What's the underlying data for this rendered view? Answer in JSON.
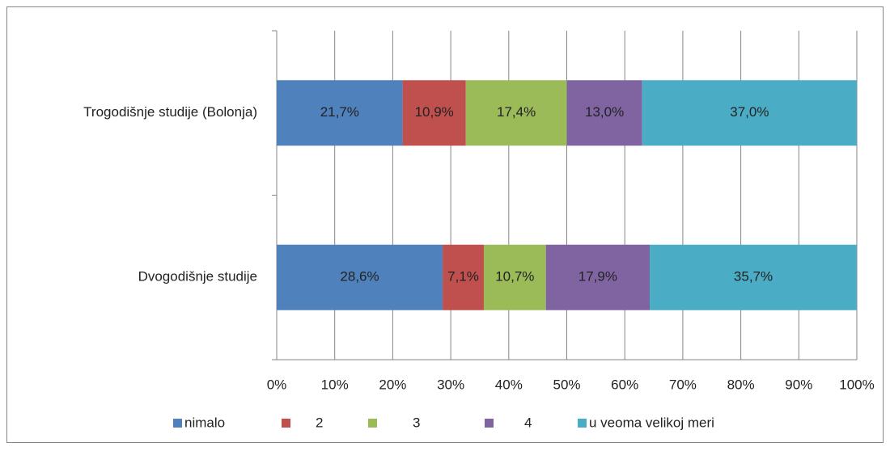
{
  "chart_data": {
    "type": "stacked-bar-horizontal",
    "categories": [
      "Trogodišnje studije (Bolonja)",
      "Dvogodišnje studije"
    ],
    "series": [
      {
        "name": "nimalo",
        "color": "#4f81bd",
        "values": [
          21.7,
          28.6
        ],
        "value_labels": [
          "21,7%",
          "28,6%"
        ]
      },
      {
        "name": "2",
        "color": "#c0504d",
        "values": [
          10.9,
          7.1
        ],
        "value_labels": [
          "10,9%",
          "7,1%"
        ]
      },
      {
        "name": "3",
        "color": "#9bbb59",
        "values": [
          17.4,
          10.7
        ],
        "value_labels": [
          "17,4%",
          "10,7%"
        ]
      },
      {
        "name": "4",
        "color": "#8064a2",
        "values": [
          13.0,
          17.9
        ],
        "value_labels": [
          "13,0%",
          "17,9%"
        ]
      },
      {
        "name": "u veoma velikoj meri",
        "color": "#4bacc6",
        "values": [
          37.0,
          35.7
        ],
        "value_labels": [
          "37,0%",
          "35,7%"
        ]
      }
    ],
    "xlim": [
      0,
      100
    ],
    "xticks": [
      {
        "value": 0,
        "label": "0%"
      },
      {
        "value": 10,
        "label": "10%"
      },
      {
        "value": 20,
        "label": "20%"
      },
      {
        "value": 30,
        "label": "30%"
      },
      {
        "value": 40,
        "label": "40%"
      },
      {
        "value": 50,
        "label": "50%"
      },
      {
        "value": 60,
        "label": "60%"
      },
      {
        "value": 70,
        "label": "70%"
      },
      {
        "value": 80,
        "label": "80%"
      },
      {
        "value": 90,
        "label": "90%"
      },
      {
        "value": 100,
        "label": "100%"
      }
    ],
    "grid": true,
    "legend": "bottom"
  }
}
